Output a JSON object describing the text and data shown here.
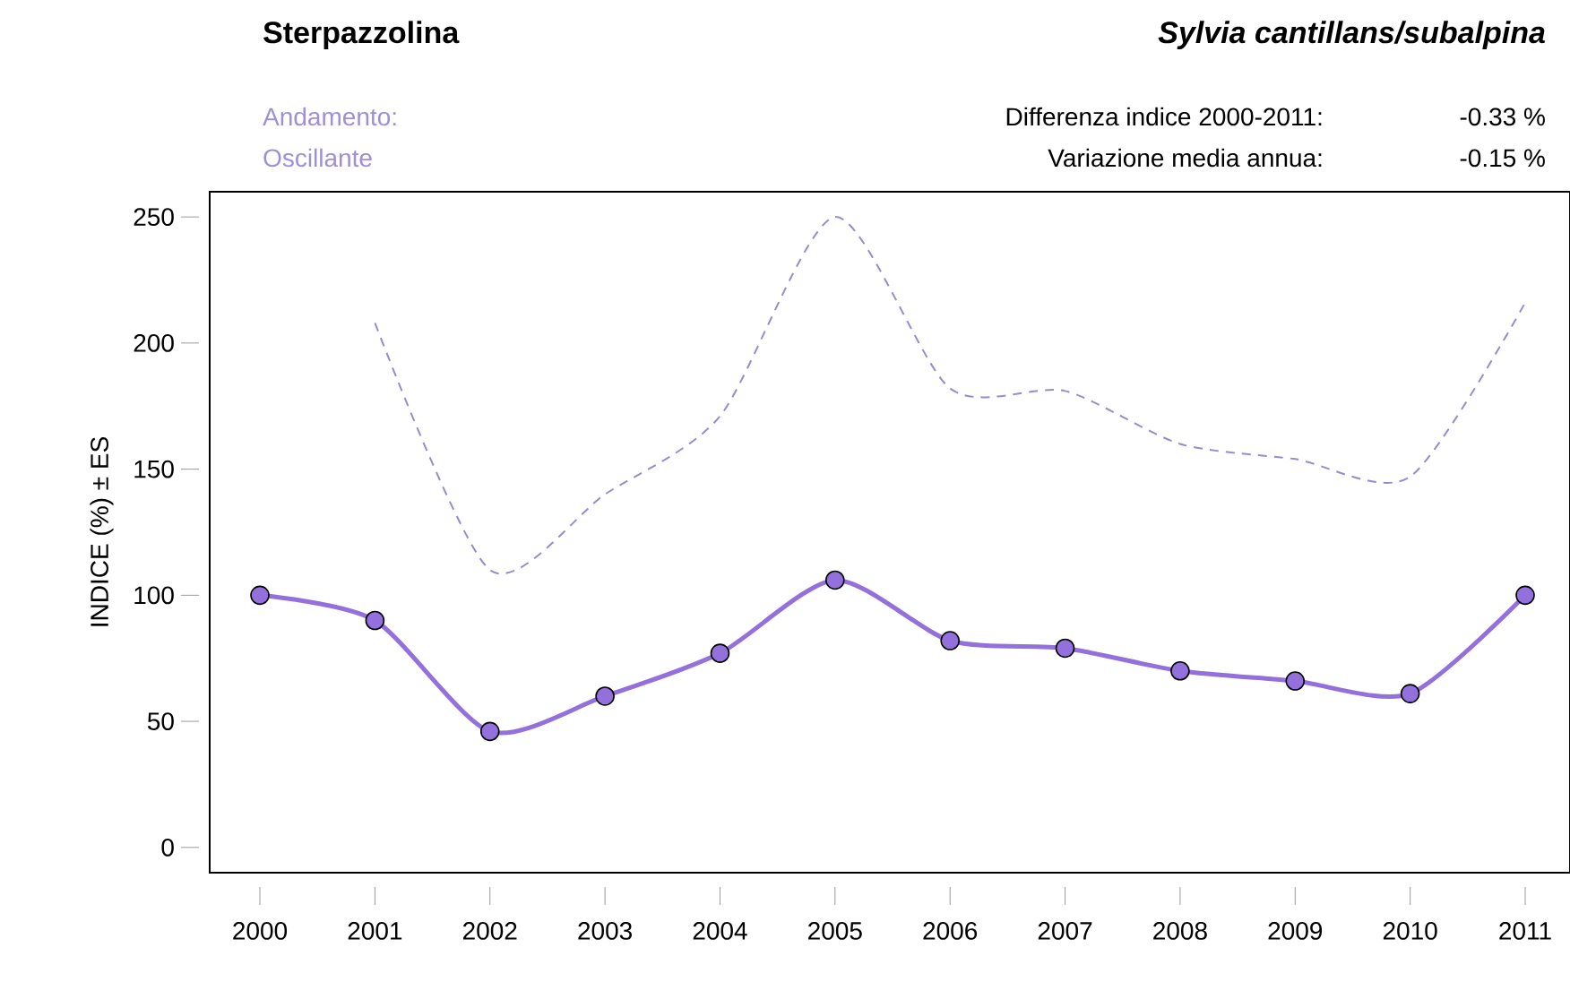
{
  "chart_data": {
    "type": "line",
    "title": "Sterpazzolina",
    "subtitle": "*Sylvia cantillans/subalpina*",
    "ylabel": "INDICE (%) ± ES",
    "annotations": [
      "Andamento:",
      "Oscillante",
      "Differenza indice 2000-2011:",
      "-0.33 %",
      "Variazione media annua:",
      "-0.15 %"
    ],
    "categories": [
      "2000",
      "2001",
      "2002",
      "2003",
      "2004",
      "2005",
      "2006",
      "2007",
      "2008",
      "2009",
      "2010",
      "2011"
    ],
    "series": [
      {
        "color": "#9370db",
        "marker": "circle",
        "line_style": "solid",
        "values": [
          100,
          90,
          46,
          60,
          77,
          106,
          82,
          79,
          70,
          66,
          61,
          100
        ]
      },
      {
        "color": "#9a8acd",
        "marker": "none",
        "line_style": "dashed",
        "values": [
          null,
          208,
          110,
          140,
          171,
          250,
          182,
          181,
          160,
          154,
          147,
          216
        ]
      }
    ],
    "ylim": [
      -10,
      260
    ],
    "yticks": [
      0,
      50,
      100,
      150,
      200,
      250
    ]
  }
}
